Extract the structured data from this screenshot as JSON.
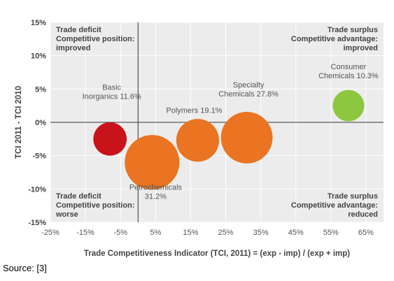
{
  "source_label": "Source: [3]",
  "colors": {
    "plot_bg": "#ececec",
    "grid": "#ffffff",
    "axis": "#333333",
    "text": "#555555",
    "bold_text": "#444444",
    "red": "#c8131b",
    "orange": "#ea7421",
    "green": "#8dc63f"
  },
  "chart_data": {
    "type": "scatter",
    "title": "",
    "xlabel": "Trade Competitiveness Indicator (TCI, 2011) = (exp - imp) / (exp + imp)",
    "ylabel": "TCI 2011 - TCI 2010",
    "xlim": [
      -25,
      70
    ],
    "ylim": [
      -15,
      15
    ],
    "x_ticks": [
      -25,
      -15,
      -5,
      5,
      15,
      25,
      35,
      45,
      55,
      65
    ],
    "x_tick_labels": [
      "-25%",
      "-15%",
      "-5%",
      "5%",
      "15%",
      "25%",
      "35%",
      "45%",
      "55%",
      "65%"
    ],
    "y_ticks": [
      15,
      10,
      5,
      0,
      -5,
      -10,
      -15
    ],
    "y_tick_labels": [
      "15%",
      "10%",
      "5%",
      "0%",
      "-5%",
      "-10%",
      "-15%"
    ],
    "grid": true,
    "points": [
      {
        "lines": [
          "Basic",
          "Inorganics 11.6%"
        ],
        "x": -8,
        "y": -2.5,
        "share": 11.6,
        "color": "red",
        "label_x": -7.5,
        "label_y": 3.5
      },
      {
        "lines": [
          "Petrochemicals",
          "31.2%"
        ],
        "x": 4,
        "y": -6,
        "share": 31.2,
        "color": "orange",
        "label_x": 5,
        "label_y": -11.5
      },
      {
        "lines": [
          "Polymers 19.1%"
        ],
        "x": 17,
        "y": -2.7,
        "share": 19.1,
        "color": "orange",
        "label_x": 16,
        "label_y": 1.4
      },
      {
        "lines": [
          "Specialty",
          "Chemicals 27.8%"
        ],
        "x": 31,
        "y": -2.3,
        "share": 27.8,
        "color": "orange",
        "label_x": 31.5,
        "label_y": 3.9
      },
      {
        "lines": [
          "Consumer",
          "Chemicals 10.3%"
        ],
        "x": 60,
        "y": 2.5,
        "share": 10.3,
        "color": "green",
        "label_x": 60,
        "label_y": 6.6
      }
    ],
    "quadrant_labels": [
      {
        "lines": [
          "Trade deficit",
          "Competitive position:",
          "improved"
        ],
        "position": "top-left"
      },
      {
        "lines": [
          "Trade surplus",
          "Competitive advantage:",
          "improved"
        ],
        "position": "top-right"
      },
      {
        "lines": [
          "Trade deficit",
          "Competitive position:",
          "worse"
        ],
        "position": "bottom-left"
      },
      {
        "lines": [
          "Trade surplus",
          "Competitive advantage:",
          "reduced"
        ],
        "position": "bottom-right"
      }
    ]
  }
}
